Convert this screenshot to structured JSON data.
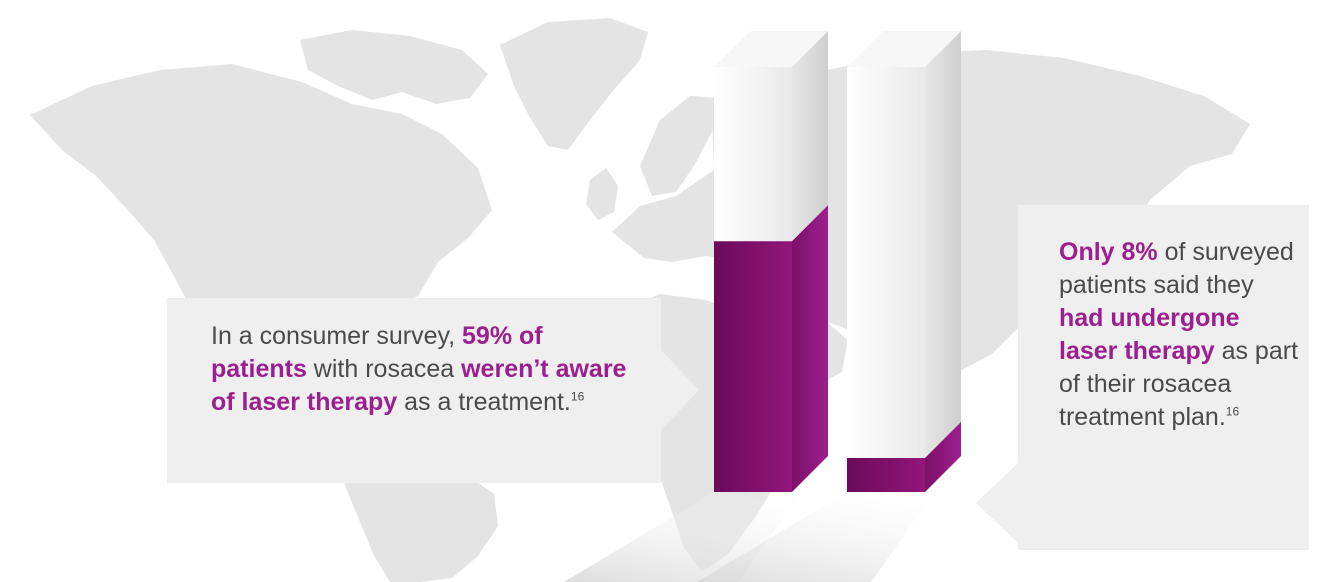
{
  "colors": {
    "map": "#e4e4e5",
    "callout_bg": "#efefef",
    "text": "#4a4a4a",
    "highlight": "#9c1f8f",
    "bar_fill": "#8e1676"
  },
  "callout_left": {
    "t1": "In a consumer survey, ",
    "t2": "59% of patients",
    "t3": " with rosacea ",
    "t4": "weren’t aware of laser therapy",
    "t5": " as a treatment.",
    "ref": "16"
  },
  "callout_right": {
    "t1": "Only 8%",
    "t2": " of surveyed patients said they ",
    "t3": "had undergone laser therapy",
    "t4": " as part of their rosacea treatment plan.",
    "ref": "16"
  },
  "chart_data": {
    "type": "bar",
    "style": "3d",
    "categories": [
      "",
      ""
    ],
    "values": [
      59,
      8
    ],
    "ylim": [
      0,
      100
    ],
    "grid": false,
    "legend": "none"
  }
}
